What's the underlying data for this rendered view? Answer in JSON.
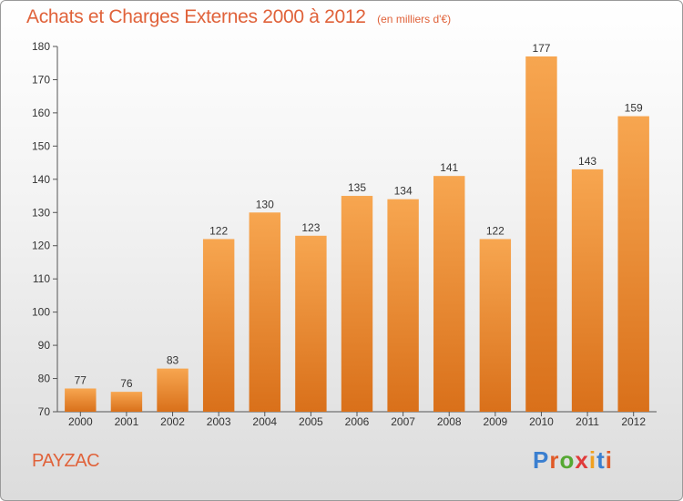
{
  "header": {
    "title": "Achats et Charges Externes 2000 à 2012",
    "subtitle": "(en milliers d'€)"
  },
  "footer": {
    "commune": "PAYZAC",
    "logo_text": "Proxiti",
    "logo_colors": [
      "#3a7fd0",
      "#e05a28",
      "#55a832",
      "#e03a3a",
      "#f0a020",
      "#3a7fd0",
      "#e05a28"
    ]
  },
  "chart_data": {
    "type": "bar",
    "categories": [
      "2000",
      "2001",
      "2002",
      "2003",
      "2004",
      "2005",
      "2006",
      "2007",
      "2008",
      "2009",
      "2010",
      "2011",
      "2012"
    ],
    "values": [
      77,
      76,
      83,
      122,
      130,
      123,
      135,
      134,
      141,
      122,
      177,
      143,
      159
    ],
    "title": "Achats et Charges Externes 2000 à 2012",
    "xlabel": "",
    "ylabel": "",
    "ylim": [
      70,
      180
    ],
    "yticks": [
      70,
      80,
      90,
      100,
      110,
      120,
      130,
      140,
      150,
      160,
      170,
      180
    ],
    "grid": false,
    "bar_color": "#f0912f",
    "bar_color_dark": "#d9701a"
  }
}
